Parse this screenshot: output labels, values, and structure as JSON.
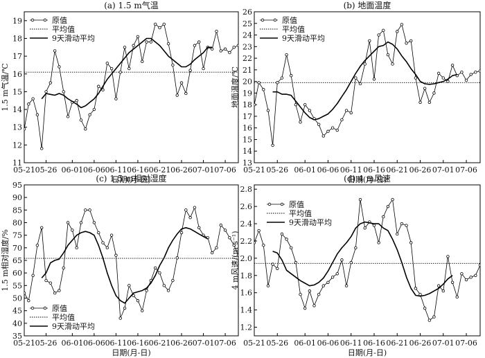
{
  "chart_data": [
    {
      "type": "line",
      "title": "(a) 1.5 m气温",
      "xlabel": "日期(月-日)",
      "ylabel": "1.5 m气温/℃",
      "x_ticks": [
        "05-21",
        "05-26",
        "06-01",
        "06-06",
        "06-11",
        "06-16",
        "06-21",
        "06-26",
        "07-01",
        "07-06"
      ],
      "y_ticks": [
        "11",
        "12",
        "13",
        "14",
        "15",
        "16",
        "17",
        "18",
        "19"
      ],
      "ylim": [
        11,
        19.5
      ],
      "n_days": 50,
      "legend": [
        "原值",
        "平均值",
        "9天滑动平均"
      ],
      "legend_position": "top-left",
      "mean": 16.1,
      "series": [
        {
          "name": "原值",
          "values": [
            12.9,
            14.3,
            14.6,
            13.7,
            11.8,
            15.0,
            15.5,
            17.3,
            16.4,
            15.0,
            13.6,
            14.4,
            14.5,
            13.4,
            12.9,
            13.7,
            14.0,
            15.3,
            15.1,
            16.6,
            16.3,
            14.6,
            16.1,
            17.5,
            16.3,
            17.6,
            18.1,
            16.7,
            17.8,
            17.8,
            18.8,
            18.6,
            18.8,
            17.7,
            16.5,
            14.8,
            15.5,
            14.9,
            16.2,
            17.6,
            17.8,
            16.3,
            17.5,
            17.4,
            18.4,
            17.3,
            17.4,
            17.2,
            17.5,
            17.6
          ]
        },
        {
          "name": "9天滑动平均",
          "values": [
            null,
            null,
            null,
            null,
            14.6,
            14.9,
            14.85,
            14.8,
            14.9,
            14.8,
            14.6,
            14.45,
            14.3,
            14.1,
            14.2,
            14.4,
            14.6,
            14.9,
            15.3,
            15.7,
            16.0,
            16.3,
            16.6,
            16.9,
            17.2,
            17.4,
            17.6,
            17.8,
            18.0,
            18.0,
            17.8,
            17.6,
            17.3,
            17.0,
            16.8,
            16.6,
            16.4,
            16.4,
            16.55,
            16.8,
            17.0,
            17.2,
            17.5,
            17.5,
            null,
            null,
            null,
            null,
            null,
            null
          ]
        }
      ]
    },
    {
      "type": "line",
      "title": "(b) 地面温度",
      "xlabel": "日期(月-日)",
      "ylabel": "地面温度/℃",
      "x_ticks": [
        "05-21",
        "05-26",
        "06-01",
        "06-06",
        "06-11",
        "06-16",
        "06-21",
        "06-26",
        "07-01",
        "07-06"
      ],
      "y_ticks": [
        "13",
        "14",
        "15",
        "16",
        "17",
        "18",
        "19",
        "20",
        "21",
        "22",
        "23",
        "24",
        "25",
        "26"
      ],
      "ylim": [
        13,
        26
      ],
      "n_days": 50,
      "legend": [
        "原值",
        "平均值",
        "9天滑动平均"
      ],
      "legend_position": "top-left",
      "mean": 19.9,
      "series": [
        {
          "name": "原值",
          "values": [
            18.0,
            19.9,
            19.3,
            17.5,
            14.5,
            19.9,
            20.3,
            22.3,
            20.5,
            18.0,
            16.5,
            18.0,
            17.5,
            16.8,
            16.3,
            15.3,
            15.7,
            16.0,
            15.8,
            16.7,
            17.5,
            17.3,
            20.3,
            19.8,
            21.5,
            23.5,
            20.2,
            24.0,
            24.4,
            22.3,
            21.5,
            24.3,
            24.9,
            23.3,
            23.5,
            20.3,
            18.2,
            19.4,
            18.2,
            19.0,
            20.7,
            20.3,
            20.0,
            21.4,
            20.5,
            20.8,
            20.1,
            20.6,
            20.8,
            20.9
          ]
        },
        {
          "name": "9天滑动平均",
          "values": [
            null,
            null,
            null,
            null,
            19.1,
            19.1,
            18.9,
            18.9,
            18.8,
            18.3,
            17.8,
            17.3,
            16.9,
            16.7,
            16.8,
            17.0,
            17.2,
            17.6,
            18.1,
            18.7,
            19.3,
            20.0,
            20.7,
            21.3,
            21.8,
            22.2,
            22.6,
            23.0,
            23.1,
            23.4,
            23.2,
            22.8,
            22.2,
            21.7,
            21.1,
            20.6,
            20.0,
            19.8,
            19.75,
            19.8,
            19.9,
            20.0,
            20.2,
            20.5,
            20.6,
            null,
            null,
            null,
            null,
            null
          ]
        }
      ]
    },
    {
      "type": "line",
      "title": "(c) 1.5 m相对湿度",
      "xlabel": "日期(月-日)",
      "ylabel": "1.5 m相对湿度/%",
      "x_ticks": [
        "05-21",
        "05-26",
        "06-01",
        "06-06",
        "06-11",
        "06-16",
        "06-21",
        "06-26",
        "07-01",
        "07-06"
      ],
      "y_ticks": [
        "35",
        "40",
        "45",
        "50",
        "55",
        "60",
        "65",
        "70",
        "75",
        "80",
        "85",
        "90",
        "95"
      ],
      "ylim": [
        35,
        95
      ],
      "n_days": 50,
      "legend": [
        "原值",
        "平均值",
        "9天滑动平均"
      ],
      "legend_position": "bottom-left",
      "mean": 65.8,
      "series": [
        {
          "name": "原值",
          "values": [
            52,
            49,
            59,
            71,
            78,
            57,
            56,
            52,
            53,
            62,
            80,
            77,
            70,
            80,
            85,
            85,
            80,
            76,
            72,
            70,
            75,
            67,
            42,
            46,
            55,
            51,
            49,
            45,
            53,
            57,
            62,
            60,
            55,
            53,
            57,
            66,
            76,
            85,
            82,
            86,
            78,
            75,
            74,
            68,
            70,
            79,
            77,
            74,
            71,
            67
          ]
        },
        {
          "name": "9天滑动平均",
          "values": [
            null,
            null,
            null,
            null,
            58,
            60,
            64,
            65,
            65.5,
            68,
            71,
            73,
            75,
            76,
            76.5,
            76,
            75,
            71,
            66,
            60,
            55,
            51,
            49,
            48,
            50,
            52,
            52.5,
            53,
            54,
            56,
            59,
            63,
            66,
            70,
            73,
            75.5,
            77.5,
            78,
            77.5,
            76.5,
            75.5,
            74.5,
            73.5,
            null,
            null,
            null,
            null,
            null,
            null,
            null
          ]
        }
      ]
    },
    {
      "type": "line",
      "title": "(d) 4 m风速",
      "xlabel": "日期(月-日)",
      "ylabel": "4 m风速/(m·s⁻¹)",
      "x_ticks": [
        "05-21",
        "05-26",
        "06-01",
        "06-06",
        "06-11",
        "06-16",
        "06-21",
        "06-26",
        "07-01",
        "07-06"
      ],
      "y_ticks": [
        "1.2",
        "1.4",
        "1.6",
        "1.8",
        "2.0",
        "2.2",
        "2.4",
        "2.6",
        "2.8"
      ],
      "ylim": [
        1.1,
        2.85
      ],
      "n_days": 50,
      "legend": [
        "原值",
        "平均值",
        "9天滑动平均"
      ],
      "legend_position": "top-left",
      "mean": 1.94,
      "series": [
        {
          "name": "原值",
          "values": [
            2.18,
            2.32,
            2.15,
            1.68,
            1.93,
            1.88,
            2.28,
            2.22,
            2.12,
            1.95,
            1.58,
            1.42,
            1.62,
            1.45,
            1.58,
            1.68,
            1.72,
            1.78,
            1.82,
            1.98,
            1.68,
            1.95,
            2.12,
            2.68,
            2.35,
            2.42,
            2.38,
            2.18,
            2.48,
            2.6,
            2.68,
            2.28,
            2.4,
            2.38,
            2.18,
            1.65,
            1.58,
            1.42,
            1.28,
            1.32,
            1.68,
            1.62,
            2.02,
            1.72,
            1.55,
            1.82,
            1.75,
            1.78,
            1.8,
            1.92
          ]
        },
        {
          "name": "9天滑动平均",
          "values": [
            null,
            null,
            null,
            null,
            2.08,
            2.06,
            1.98,
            1.86,
            1.82,
            1.78,
            1.74,
            1.71,
            1.68,
            1.69,
            1.72,
            1.77,
            1.85,
            1.95,
            2.05,
            2.12,
            2.18,
            2.25,
            2.35,
            2.4,
            2.42,
            2.41,
            2.4,
            2.4,
            2.35,
            2.32,
            2.22,
            2.1,
            1.95,
            1.78,
            1.65,
            1.57,
            1.56,
            1.57,
            1.59,
            1.62,
            1.65,
            1.7,
            1.76,
            1.8,
            null,
            null,
            null,
            null,
            null,
            null
          ]
        }
      ]
    }
  ]
}
